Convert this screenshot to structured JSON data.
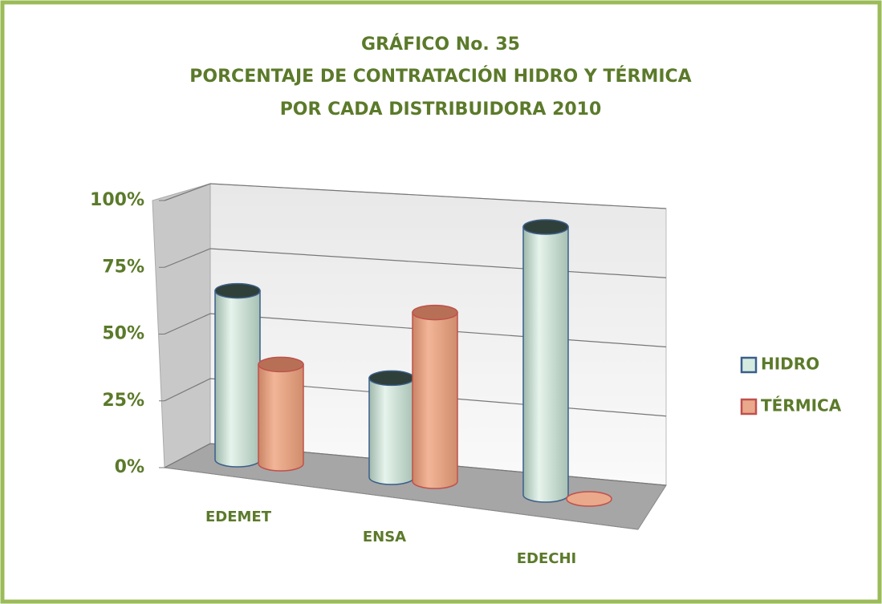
{
  "chart_data": {
    "type": "bar3d",
    "title": [
      "GRÁFICO  No.  35",
      "PORCENTAJE DE CONTRATACIÓN HIDRO Y TÉRMICA",
      "POR  CADA  DISTRIBUIDORA   2010"
    ],
    "categories": [
      "EDEMET",
      "ENSA",
      "EDECHI"
    ],
    "series": [
      {
        "name": "HIDRO",
        "color": "#d6ebe0",
        "values": [
          63,
          37,
          100
        ]
      },
      {
        "name": "TÉRMICA",
        "color": "#e9a98a",
        "values": [
          37,
          63,
          0
        ]
      }
    ],
    "ylim": [
      0,
      100
    ],
    "yticks": [
      {
        "value": 0,
        "label": "0%"
      },
      {
        "value": 25,
        "label": "25%"
      },
      {
        "value": 50,
        "label": "50%"
      },
      {
        "value": 75,
        "label": "75%"
      },
      {
        "value": 100,
        "label": "100%"
      }
    ],
    "grid": true,
    "legend": "right"
  }
}
